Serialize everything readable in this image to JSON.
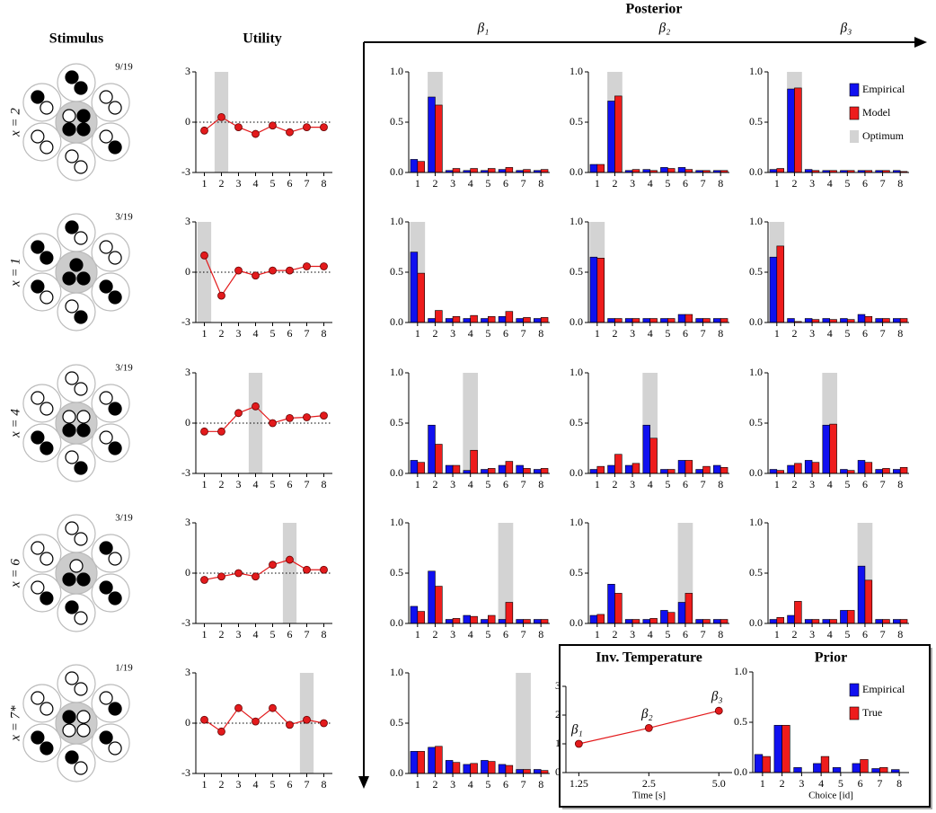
{
  "headers": {
    "stimulus": "Stimulus",
    "utility": "Utility",
    "posterior": "Posterior",
    "betas": [
      "β₁",
      "β₂",
      "β₃"
    ]
  },
  "rows": [
    {
      "label": "x = 2",
      "fraction": "9/19"
    },
    {
      "label": "x = 1",
      "fraction": "3/19"
    },
    {
      "label": "x = 4",
      "fraction": "3/19"
    },
    {
      "label": "x = 6",
      "fraction": "3/19"
    },
    {
      "label": "x = 7*",
      "fraction": "1/19"
    }
  ],
  "chart_data": [
    {
      "type": "line",
      "categories": [
        1,
        2,
        3,
        4,
        5,
        6,
        7,
        8
      ],
      "values": [
        -0.5,
        0.3,
        -0.3,
        -0.7,
        -0.2,
        -0.6,
        -0.3,
        -0.3
      ],
      "color": "#e31a1c",
      "ylim": [
        -3,
        3
      ],
      "yticks": [
        -3,
        0,
        3
      ],
      "reference_line": 0,
      "optimum": 2
    },
    {
      "type": "bar",
      "categories": [
        1,
        2,
        3,
        4,
        5,
        6,
        7,
        8
      ],
      "series": [
        {
          "color": "#1010f0",
          "values": [
            0.13,
            0.75,
            0.02,
            0.02,
            0.02,
            0.03,
            0.02,
            0.02
          ]
        },
        {
          "color": "#ee1c1c",
          "values": [
            0.11,
            0.67,
            0.04,
            0.04,
            0.04,
            0.05,
            0.03,
            0.03
          ]
        }
      ],
      "ylim": [
        0,
        1
      ],
      "yticks": [
        {
          "value": 0,
          "label": "0.0"
        },
        0.5,
        {
          "value": 1,
          "label": "1.0"
        }
      ],
      "optimum": 2
    },
    {
      "type": "bar",
      "categories": [
        1,
        2,
        3,
        4,
        5,
        6,
        7,
        8
      ],
      "series": [
        {
          "color": "#1010f0",
          "values": [
            0.08,
            0.71,
            0.02,
            0.03,
            0.05,
            0.05,
            0.02,
            0.02
          ]
        },
        {
          "color": "#ee1c1c",
          "values": [
            0.08,
            0.76,
            0.03,
            0.02,
            0.04,
            0.03,
            0.02,
            0.02
          ]
        }
      ],
      "ylim": [
        0,
        1
      ],
      "yticks": [
        {
          "value": 0,
          "label": "0.0"
        },
        0.5,
        {
          "value": 1,
          "label": "1.0"
        }
      ],
      "optimum": 2
    },
    {
      "type": "bar",
      "categories": [
        1,
        2,
        3,
        4,
        5,
        6,
        7,
        8
      ],
      "series": [
        {
          "name": "Empirical",
          "color": "#1010f0",
          "values": [
            0.03,
            0.83,
            0.03,
            0.02,
            0.02,
            0.02,
            0.02,
            0.02
          ]
        },
        {
          "name": "Model",
          "color": "#ee1c1c",
          "values": [
            0.04,
            0.84,
            0.02,
            0.02,
            0.02,
            0.02,
            0.02,
            0.01
          ]
        }
      ],
      "ylim": [
        0,
        1
      ],
      "yticks": [
        {
          "value": 0,
          "label": "0.0"
        },
        0.5,
        {
          "value": 1,
          "label": "1.0"
        }
      ],
      "optimum": 2,
      "optimum_label": "Optimum",
      "legend": "upper right"
    },
    {
      "type": "line",
      "categories": [
        1,
        2,
        3,
        4,
        5,
        6,
        7,
        8
      ],
      "values": [
        1.0,
        -1.4,
        0.1,
        -0.2,
        0.1,
        0.1,
        0.35,
        0.35
      ],
      "color": "#e31a1c",
      "ylim": [
        -3,
        3
      ],
      "yticks": [
        -3,
        0,
        3
      ],
      "reference_line": 0,
      "optimum": 1
    },
    {
      "type": "bar",
      "categories": [
        1,
        2,
        3,
        4,
        5,
        6,
        7,
        8
      ],
      "series": [
        {
          "color": "#1010f0",
          "values": [
            0.7,
            0.04,
            0.04,
            0.04,
            0.04,
            0.06,
            0.04,
            0.04
          ]
        },
        {
          "color": "#ee1c1c",
          "values": [
            0.49,
            0.12,
            0.06,
            0.07,
            0.06,
            0.11,
            0.05,
            0.05
          ]
        }
      ],
      "ylim": [
        0,
        1
      ],
      "yticks": [
        {
          "value": 0,
          "label": "0.0"
        },
        0.5,
        {
          "value": 1,
          "label": "1.0"
        }
      ],
      "optimum": 1
    },
    {
      "type": "bar",
      "categories": [
        1,
        2,
        3,
        4,
        5,
        6,
        7,
        8
      ],
      "series": [
        {
          "color": "#1010f0",
          "values": [
            0.65,
            0.04,
            0.04,
            0.04,
            0.04,
            0.08,
            0.04,
            0.04
          ]
        },
        {
          "color": "#ee1c1c",
          "values": [
            0.64,
            0.04,
            0.04,
            0.04,
            0.04,
            0.08,
            0.04,
            0.04
          ]
        }
      ],
      "ylim": [
        0,
        1
      ],
      "yticks": [
        {
          "value": 0,
          "label": "0.0"
        },
        0.5,
        {
          "value": 1,
          "label": "1.0"
        }
      ],
      "optimum": 1
    },
    {
      "type": "bar",
      "categories": [
        1,
        2,
        3,
        4,
        5,
        6,
        7,
        8
      ],
      "series": [
        {
          "color": "#1010f0",
          "values": [
            0.65,
            0.04,
            0.04,
            0.04,
            0.04,
            0.08,
            0.04,
            0.04
          ]
        },
        {
          "color": "#ee1c1c",
          "values": [
            0.76,
            0.01,
            0.03,
            0.03,
            0.03,
            0.06,
            0.04,
            0.04
          ]
        }
      ],
      "ylim": [
        0,
        1
      ],
      "yticks": [
        {
          "value": 0,
          "label": "0.0"
        },
        0.5,
        {
          "value": 1,
          "label": "1.0"
        }
      ],
      "optimum": 1
    },
    {
      "type": "line",
      "categories": [
        1,
        2,
        3,
        4,
        5,
        6,
        7,
        8
      ],
      "values": [
        -0.5,
        -0.5,
        0.6,
        1.0,
        0.0,
        0.3,
        0.35,
        0.45
      ],
      "color": "#e31a1c",
      "ylim": [
        -3,
        3
      ],
      "yticks": [
        -3,
        0,
        3
      ],
      "reference_line": 0,
      "optimum": 4
    },
    {
      "type": "bar",
      "categories": [
        1,
        2,
        3,
        4,
        5,
        6,
        7,
        8
      ],
      "series": [
        {
          "color": "#1010f0",
          "values": [
            0.13,
            0.48,
            0.08,
            0.03,
            0.04,
            0.08,
            0.08,
            0.04
          ]
        },
        {
          "color": "#ee1c1c",
          "values": [
            0.11,
            0.29,
            0.08,
            0.23,
            0.05,
            0.12,
            0.05,
            0.05
          ]
        }
      ],
      "ylim": [
        0,
        1
      ],
      "yticks": [
        {
          "value": 0,
          "label": "0.0"
        },
        0.5,
        {
          "value": 1,
          "label": "1.0"
        }
      ],
      "optimum": 4
    },
    {
      "type": "bar",
      "categories": [
        1,
        2,
        3,
        4,
        5,
        6,
        7,
        8
      ],
      "series": [
        {
          "color": "#1010f0",
          "values": [
            0.04,
            0.08,
            0.08,
            0.48,
            0.04,
            0.13,
            0.04,
            0.08
          ]
        },
        {
          "color": "#ee1c1c",
          "values": [
            0.07,
            0.19,
            0.1,
            0.35,
            0.04,
            0.13,
            0.07,
            0.06
          ]
        }
      ],
      "ylim": [
        0,
        1
      ],
      "yticks": [
        {
          "value": 0,
          "label": "0.0"
        },
        0.5,
        {
          "value": 1,
          "label": "1.0"
        }
      ],
      "optimum": 4
    },
    {
      "type": "bar",
      "categories": [
        1,
        2,
        3,
        4,
        5,
        6,
        7,
        8
      ],
      "series": [
        {
          "color": "#1010f0",
          "values": [
            0.04,
            0.08,
            0.13,
            0.48,
            0.04,
            0.13,
            0.04,
            0.04
          ]
        },
        {
          "color": "#ee1c1c",
          "values": [
            0.03,
            0.1,
            0.11,
            0.49,
            0.03,
            0.11,
            0.05,
            0.06
          ]
        }
      ],
      "ylim": [
        0,
        1
      ],
      "yticks": [
        {
          "value": 0,
          "label": "0.0"
        },
        0.5,
        {
          "value": 1,
          "label": "1.0"
        }
      ],
      "optimum": 4
    },
    {
      "type": "line",
      "categories": [
        1,
        2,
        3,
        4,
        5,
        6,
        7,
        8
      ],
      "values": [
        -0.4,
        -0.2,
        0.0,
        -0.2,
        0.5,
        0.8,
        0.2,
        0.2
      ],
      "color": "#e31a1c",
      "ylim": [
        -3,
        3
      ],
      "yticks": [
        -3,
        0,
        3
      ],
      "reference_line": 0,
      "optimum": 6
    },
    {
      "type": "bar",
      "categories": [
        1,
        2,
        3,
        4,
        5,
        6,
        7,
        8
      ],
      "series": [
        {
          "color": "#1010f0",
          "values": [
            0.17,
            0.52,
            0.04,
            0.08,
            0.04,
            0.04,
            0.04,
            0.04
          ]
        },
        {
          "color": "#ee1c1c",
          "values": [
            0.12,
            0.37,
            0.05,
            0.07,
            0.08,
            0.21,
            0.04,
            0.04
          ]
        }
      ],
      "ylim": [
        0,
        1
      ],
      "yticks": [
        {
          "value": 0,
          "label": "0.0"
        },
        0.5,
        {
          "value": 1,
          "label": "1.0"
        }
      ],
      "optimum": 6
    },
    {
      "type": "bar",
      "categories": [
        1,
        2,
        3,
        4,
        5,
        6,
        7,
        8
      ],
      "series": [
        {
          "color": "#1010f0",
          "values": [
            0.08,
            0.39,
            0.04,
            0.04,
            0.13,
            0.21,
            0.04,
            0.04
          ]
        },
        {
          "color": "#ee1c1c",
          "values": [
            0.09,
            0.3,
            0.04,
            0.05,
            0.11,
            0.3,
            0.04,
            0.04
          ]
        }
      ],
      "ylim": [
        0,
        1
      ],
      "yticks": [
        {
          "value": 0,
          "label": "0.0"
        },
        0.5,
        {
          "value": 1,
          "label": "1.0"
        }
      ],
      "optimum": 6
    },
    {
      "type": "bar",
      "categories": [
        1,
        2,
        3,
        4,
        5,
        6,
        7,
        8
      ],
      "series": [
        {
          "color": "#1010f0",
          "values": [
            0.04,
            0.08,
            0.04,
            0.04,
            0.13,
            0.57,
            0.04,
            0.04
          ]
        },
        {
          "color": "#ee1c1c",
          "values": [
            0.06,
            0.22,
            0.04,
            0.04,
            0.13,
            0.43,
            0.04,
            0.04
          ]
        }
      ],
      "ylim": [
        0,
        1
      ],
      "yticks": [
        {
          "value": 0,
          "label": "0.0"
        },
        0.5,
        {
          "value": 1,
          "label": "1.0"
        }
      ],
      "optimum": 6
    },
    {
      "type": "line",
      "categories": [
        1,
        2,
        3,
        4,
        5,
        6,
        7,
        8
      ],
      "values": [
        0.2,
        -0.5,
        0.9,
        0.1,
        0.9,
        -0.1,
        0.2,
        0.0
      ],
      "color": "#e31a1c",
      "ylim": [
        -3,
        3
      ],
      "yticks": [
        -3,
        0,
        3
      ],
      "reference_line": 0,
      "optimum": 7
    },
    {
      "type": "bar",
      "categories": [
        1,
        2,
        3,
        4,
        5,
        6,
        7,
        8
      ],
      "series": [
        {
          "color": "#1010f0",
          "values": [
            0.22,
            0.26,
            0.13,
            0.09,
            0.13,
            0.09,
            0.04,
            0.04
          ]
        },
        {
          "color": "#ee1c1c",
          "values": [
            0.22,
            0.27,
            0.11,
            0.1,
            0.12,
            0.08,
            0.04,
            0.03
          ]
        }
      ],
      "ylim": [
        0,
        1
      ],
      "yticks": [
        {
          "value": 0,
          "label": "0.0"
        },
        0.5,
        {
          "value": 1,
          "label": "1.0"
        }
      ],
      "optimum": 7
    },
    {
      "type": "line",
      "title": "Inv. Temperature",
      "x_label": "Time [s]",
      "x": [
        1.25,
        2.5,
        5
      ],
      "values": [
        1.0,
        1.55,
        2.15
      ],
      "point_labels": [
        "β₁",
        "β₂",
        "β₃"
      ],
      "color": "#e31a1c",
      "xscale": "log",
      "xlim": [
        1.1,
        5.7
      ],
      "xticks": [
        1.25,
        2.5,
        {
          "value": 5,
          "label": "5.0"
        }
      ],
      "ylim": [
        0,
        3
      ],
      "yticks": [
        0,
        1,
        2,
        3
      ]
    },
    {
      "type": "bar",
      "title": "Prior",
      "x_label": "Choice [id]",
      "categories": [
        1,
        2,
        3,
        4,
        5,
        6,
        7,
        8
      ],
      "series": [
        {
          "name": "Empirical",
          "color": "#1010f0",
          "values": [
            0.18,
            0.47,
            0.05,
            0.09,
            0.05,
            0.09,
            0.04,
            0.03
          ]
        },
        {
          "name": "True",
          "color": "#ee1c1c",
          "values": [
            0.16,
            0.47,
            0.0,
            0.16,
            0.0,
            0.13,
            0.05,
            0.0
          ]
        }
      ],
      "ylim": [
        0,
        1
      ],
      "yticks": [
        {
          "value": 0,
          "label": "0.0"
        },
        0.5,
        {
          "value": 1,
          "label": "1.0"
        }
      ],
      "legend": "upper right"
    }
  ]
}
